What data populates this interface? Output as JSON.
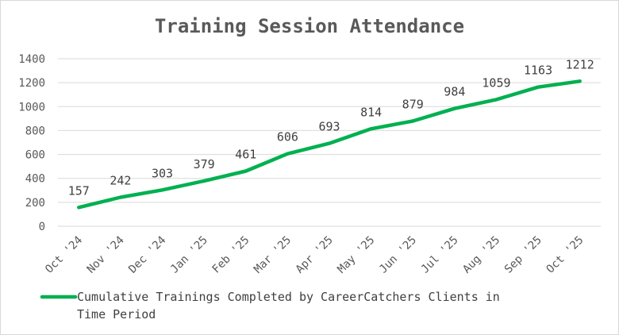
{
  "chart_data": {
    "type": "line",
    "title": "Training Session Attendance",
    "categories": [
      "Oct '24",
      "Nov '24",
      "Dec '24",
      "Jan '25",
      "Feb '25",
      "Mar '25",
      "Apr '25",
      "May '25",
      "Jun '25",
      "Jul '25",
      "Aug '25",
      "Sep '25",
      "Oct '25"
    ],
    "series": [
      {
        "name": "Cumulative Trainings Completed by CareerCatchers Clients in Time Period",
        "values": [
          157,
          242,
          303,
          379,
          461,
          606,
          693,
          814,
          879,
          984,
          1059,
          1163,
          1212
        ],
        "color": "#00b050"
      }
    ],
    "ylim": [
      0,
      1400
    ],
    "yticks": [
      0,
      200,
      400,
      600,
      800,
      1000,
      1200,
      1400
    ],
    "grid": true,
    "data_labels": true,
    "legend_position": "bottom",
    "legend_lines": [
      "Cumulative Trainings Completed by CareerCatchers Clients in",
      "Time Period"
    ]
  }
}
